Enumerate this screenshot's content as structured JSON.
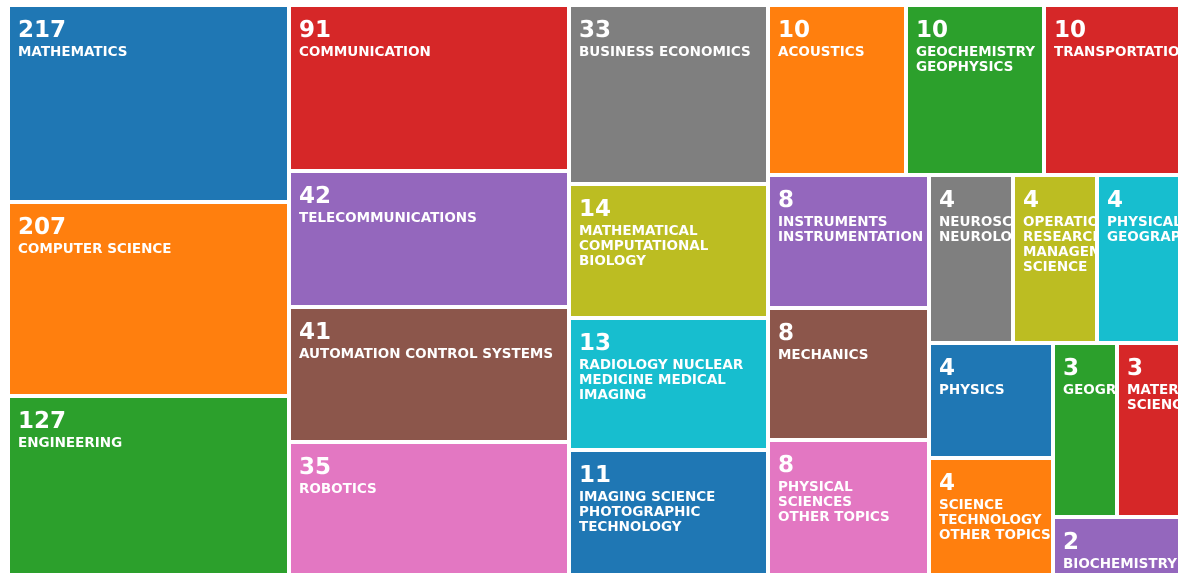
{
  "chart_data": {
    "type": "treemap",
    "title": "",
    "items": [
      {
        "label": "MATHEMATICS",
        "value": 217,
        "color": "#1f77b4"
      },
      {
        "label": "COMPUTER SCIENCE",
        "value": 207,
        "color": "#ff7f0e"
      },
      {
        "label": "ENGINEERING",
        "value": 127,
        "color": "#2ca02c"
      },
      {
        "label": "COMMUNICATION",
        "value": 91,
        "color": "#d62728"
      },
      {
        "label": "TELECOMMUNICATIONS",
        "value": 42,
        "color": "#9467bd"
      },
      {
        "label": "AUTOMATION CONTROL SYSTEMS",
        "value": 41,
        "color": "#8c564b"
      },
      {
        "label": "ROBOTICS",
        "value": 35,
        "color": "#e377c2"
      },
      {
        "label": "BUSINESS ECONOMICS",
        "value": 33,
        "color": "#7f7f7f"
      },
      {
        "label": "MATHEMATICAL\nCOMPUTATIONAL BIOLOGY",
        "value": 14,
        "color": "#bcbd22"
      },
      {
        "label": "RADIOLOGY NUCLEAR\nMEDICINE MEDICAL\nIMAGING",
        "value": 13,
        "color": "#17becf"
      },
      {
        "label": "IMAGING SCIENCE\nPHOTOGRAPHIC\nTECHNOLOGY",
        "value": 11,
        "color": "#1f77b4"
      },
      {
        "label": "ACOUSTICS",
        "value": 10,
        "color": "#ff7f0e"
      },
      {
        "label": "GEOCHEMISTRY\nGEOPHYSICS",
        "value": 10,
        "color": "#2ca02c"
      },
      {
        "label": "TRANSPORTATION",
        "value": 10,
        "color": "#d62728"
      },
      {
        "label": "INSTRUMENTS\nINSTRUMENTATION",
        "value": 8,
        "color": "#9467bd"
      },
      {
        "label": "MECHANICS",
        "value": 8,
        "color": "#8c564b"
      },
      {
        "label": "PHYSICAL SCIENCES\nOTHER TOPICS",
        "value": 8,
        "color": "#e377c2"
      },
      {
        "label": "NEUROSCIENCES\nNEUROLOGY",
        "value": 4,
        "color": "#7f7f7f"
      },
      {
        "label": "OPERATIONS\nRESEARCH\nMANAGEMENT\nSCIENCE",
        "value": 4,
        "color": "#bcbd22"
      },
      {
        "label": "PHYSICAL\nGEOGRAPHY",
        "value": 4,
        "color": "#17becf"
      },
      {
        "label": "PHYSICS",
        "value": 4,
        "color": "#1f77b4"
      },
      {
        "label": "SCIENCE\nTECHNOLOGY\nOTHER TOPICS",
        "value": 4,
        "color": "#ff7f0e"
      },
      {
        "label": "GEOGRAPHY",
        "value": 3,
        "color": "#2ca02c"
      },
      {
        "label": "MATERIALS\nSCIENCE",
        "value": 3,
        "color": "#d62728"
      },
      {
        "label": "BIOCHEMISTRY",
        "value": 2,
        "color": "#9467bd"
      }
    ]
  }
}
